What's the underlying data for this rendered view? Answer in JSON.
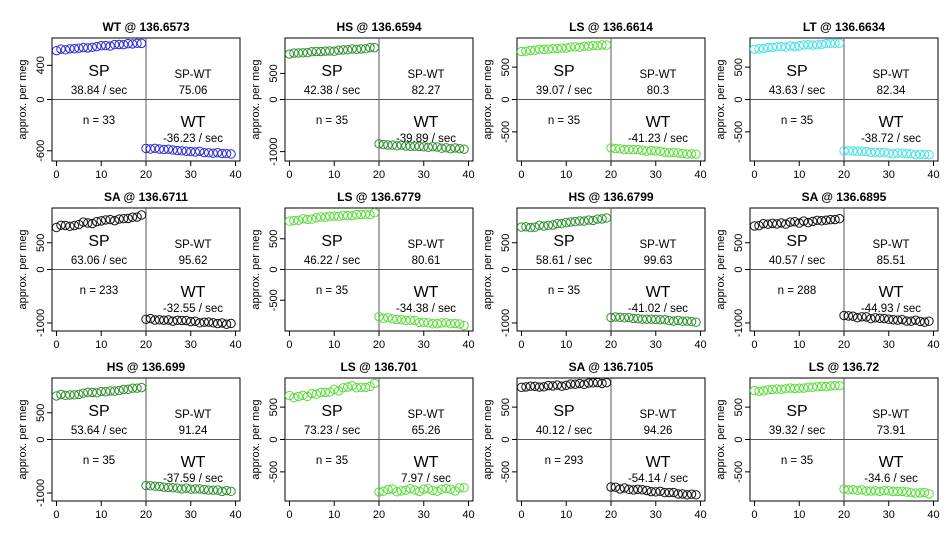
{
  "y_axis_label": "approx. per meg",
  "x_ticks": [
    0,
    10,
    20,
    30,
    40
  ],
  "panel_labels": {
    "sp": "SP",
    "spwt": "SP-WT",
    "wt": "WT"
  },
  "chart_data": [
    {
      "type": "scatter",
      "title": "WT @ 136.6573",
      "color": "#2b2bd6",
      "yticks": [
        400,
        0,
        -600
      ],
      "ylim": [
        -720,
        720
      ],
      "xlim": [
        -1,
        41
      ],
      "sp_rate": "38.84 / sec",
      "spwt": "75.06",
      "n": "n = 33",
      "wt_rate": "-36.23 / sec",
      "sp_start": 580,
      "sp_end": 660,
      "wt_start": -570,
      "wt_end": -635,
      "sp_noise": 8,
      "wt_noise": 8
    },
    {
      "type": "scatter",
      "title": "HS @ 136.6594",
      "color": "#2f8f2f",
      "yticks": [
        500,
        0,
        -1000
      ],
      "ylim": [
        -1180,
        1180
      ],
      "xlim": [
        -1,
        41
      ],
      "sp_rate": "42.38 / sec",
      "spwt": "82.27",
      "n": "n = 35",
      "wt_rate": "-39.89 / sec",
      "sp_start": 880,
      "sp_end": 990,
      "wt_start": -860,
      "wt_end": -950,
      "sp_noise": 12,
      "wt_noise": 12
    },
    {
      "type": "scatter",
      "title": "LS @ 136.6614",
      "color": "#5bdc3a",
      "yticks": [
        500,
        0,
        -500
      ],
      "ylim": [
        -950,
        950
      ],
      "xlim": [
        -1,
        41
      ],
      "sp_rate": "39.07 / sec",
      "spwt": "80.3",
      "n": "n = 35",
      "wt_rate": "-41.23 / sec",
      "sp_start": 750,
      "sp_end": 840,
      "wt_start": -750,
      "wt_end": -850,
      "sp_noise": 10,
      "wt_noise": 10
    },
    {
      "type": "scatter",
      "title": "LT @ 136.6634",
      "color": "#45e0e8",
      "yticks": [
        500,
        0,
        -500
      ],
      "ylim": [
        -950,
        950
      ],
      "xlim": [
        -1,
        41
      ],
      "sp_rate": "43.63 / sec",
      "spwt": "82.34",
      "n": "n = 35",
      "wt_rate": "-38.72 / sec",
      "sp_start": 780,
      "sp_end": 880,
      "wt_start": -790,
      "wt_end": -860,
      "sp_noise": 10,
      "wt_noise": 10
    },
    {
      "type": "scatter",
      "title": "SA @ 136.6711",
      "color": "#111111",
      "yticks": [
        500,
        0,
        -1000
      ],
      "ylim": [
        -1150,
        1150
      ],
      "xlim": [
        -1,
        41
      ],
      "sp_rate": "63.06 / sec",
      "spwt": "95.62",
      "n": "n = 233",
      "wt_rate": "-32.55 / sec",
      "sp_start": 800,
      "sp_end": 1000,
      "wt_start": -920,
      "wt_end": -1020,
      "sp_noise": 25,
      "wt_noise": 15
    },
    {
      "type": "scatter",
      "title": "LS @ 136.6779",
      "color": "#5bdc3a",
      "yticks": [
        500,
        0,
        -500
      ],
      "ylim": [
        -1000,
        1000
      ],
      "xlim": [
        -1,
        41
      ],
      "sp_rate": "46.22 / sec",
      "spwt": "80.61",
      "n": "n = 35",
      "wt_rate": "-34.38 / sec",
      "sp_start": 800,
      "sp_end": 910,
      "wt_start": -780,
      "wt_end": -910,
      "sp_noise": 15,
      "wt_noise": 20
    },
    {
      "type": "scatter",
      "title": "HS @ 136.6799",
      "color": "#2f8f2f",
      "yticks": [
        500,
        0,
        -1000
      ],
      "ylim": [
        -1150,
        1150
      ],
      "xlim": [
        -1,
        41
      ],
      "sp_rate": "58.61 / sec",
      "spwt": "99.63",
      "n": "n = 35",
      "wt_rate": "-41.02 / sec",
      "sp_start": 780,
      "sp_end": 950,
      "wt_start": -890,
      "wt_end": -980,
      "sp_noise": 15,
      "wt_noise": 12
    },
    {
      "type": "scatter",
      "title": "SA @ 136.6895",
      "color": "#111111",
      "yticks": [
        500,
        0,
        -1000
      ],
      "ylim": [
        -1150,
        1150
      ],
      "xlim": [
        -1,
        41
      ],
      "sp_rate": "40.57 / sec",
      "spwt": "85.51",
      "n": "n = 288",
      "wt_rate": "-44.93 / sec",
      "sp_start": 830,
      "sp_end": 930,
      "wt_start": -870,
      "wt_end": -980,
      "sp_noise": 20,
      "wt_noise": 15
    },
    {
      "type": "scatter",
      "title": "HS @ 136.699",
      "color": "#2f8f2f",
      "yticks": [
        500,
        0,
        -1000
      ],
      "ylim": [
        -1150,
        1150
      ],
      "xlim": [
        -1,
        41
      ],
      "sp_rate": "53.64 / sec",
      "spwt": "91.24",
      "n": "n = 35",
      "wt_rate": "-37.59 / sec",
      "sp_start": 820,
      "sp_end": 960,
      "wt_start": -870,
      "wt_end": -970,
      "sp_noise": 15,
      "wt_noise": 12
    },
    {
      "type": "scatter",
      "title": "LS @ 136.701",
      "color": "#5bdc3a",
      "yticks": [
        500,
        0,
        -500
      ],
      "ylim": [
        -950,
        950
      ],
      "xlim": [
        -1,
        41
      ],
      "sp_rate": "73.23 / sec",
      "spwt": "65.26",
      "n": "n = 35",
      "wt_rate": "7.97 / sec",
      "sp_start": 650,
      "sp_end": 850,
      "wt_start": -790,
      "wt_end": -770,
      "sp_noise": 35,
      "wt_noise": 25
    },
    {
      "type": "scatter",
      "title": "SA @ 136.7105",
      "color": "#111111",
      "yticks": [
        500,
        0,
        -500
      ],
      "ylim": [
        -950,
        950
      ],
      "xlim": [
        -1,
        41
      ],
      "sp_rate": "40.12 / sec",
      "spwt": "94.26",
      "n": "n = 293",
      "wt_rate": "-54.14 / sec",
      "sp_start": 800,
      "sp_end": 880,
      "wt_start": -740,
      "wt_end": -860,
      "sp_noise": 15,
      "wt_noise": 12
    },
    {
      "type": "scatter",
      "title": "LS @ 136.72",
      "color": "#5bdc3a",
      "yticks": [
        500,
        0,
        -500
      ],
      "ylim": [
        -950,
        950
      ],
      "xlim": [
        -1,
        41
      ],
      "sp_rate": "39.32 / sec",
      "spwt": "73.91",
      "n": "n = 35",
      "wt_rate": "-34.6 / sec",
      "sp_start": 750,
      "sp_end": 830,
      "wt_start": -770,
      "wt_end": -830,
      "sp_noise": 10,
      "wt_noise": 10
    }
  ]
}
